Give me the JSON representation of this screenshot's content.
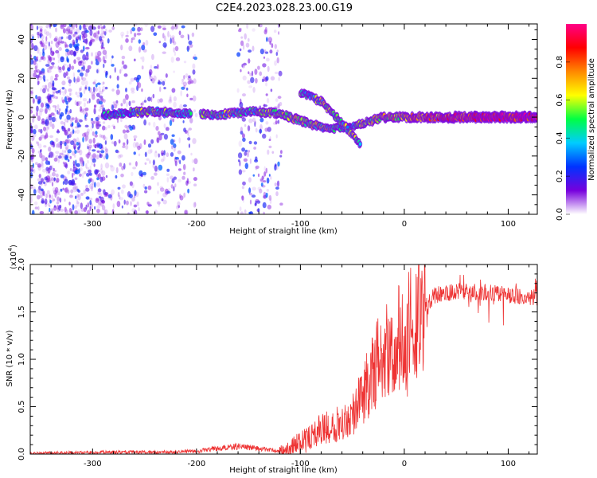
{
  "figure": {
    "title": "C2E4.2023.028.23.00.G19"
  },
  "chart_data": [
    {
      "type": "heatmap",
      "xlabel": "Height of straight line (km)",
      "ylabel": "Frequency (Hz)",
      "xlim": [
        -360,
        128
      ],
      "ylim": [
        -50,
        48
      ],
      "x_ticks": [
        -300,
        -200,
        -100,
        0,
        100
      ],
      "y_ticks": [
        -40,
        -20,
        0,
        20,
        40
      ],
      "noise_regions": [
        {
          "x": [
            -360,
            -286
          ],
          "density": "high"
        },
        {
          "x": [
            -285,
            -200
          ],
          "density": "medium"
        },
        {
          "x": [
            -160,
            -118
          ],
          "density": "medium"
        }
      ],
      "ridge": [
        {
          "x": -290,
          "y": 1,
          "amp": 0.35
        },
        {
          "x": -250,
          "y": 3,
          "amp": 0.45
        },
        {
          "x": -215,
          "y": 2,
          "amp": 0.4
        },
        {
          "x": -180,
          "y": 1,
          "amp": 0.5
        },
        {
          "x": -150,
          "y": 3,
          "amp": 0.45
        },
        {
          "x": -120,
          "y": 2,
          "amp": 0.55
        },
        {
          "x": -100,
          "y": -2,
          "amp": 0.55
        },
        {
          "x": -75,
          "y": -6,
          "amp": 0.5
        },
        {
          "x": -50,
          "y": -5,
          "amp": 0.45
        },
        {
          "x": -20,
          "y": 0,
          "amp": 0.6
        },
        {
          "x": 20,
          "y": 0,
          "amp": 0.75
        },
        {
          "x": 60,
          "y": 0,
          "amp": 0.85
        },
        {
          "x": 100,
          "y": 0,
          "amp": 0.9
        },
        {
          "x": 128,
          "y": 0,
          "amp": 0.9
        }
      ],
      "branch": [
        {
          "x": -100,
          "y": 13,
          "amp": 0.4
        },
        {
          "x": -80,
          "y": 8,
          "amp": 0.5
        },
        {
          "x": -60,
          "y": -3,
          "amp": 0.5
        },
        {
          "x": -42,
          "y": -14,
          "amp": 0.45
        }
      ],
      "colorbar": {
        "label": "Normalized spectral amplitude",
        "range": [
          0,
          1
        ],
        "ticks": [
          "0.0",
          "0.2",
          "0.4",
          "0.6",
          "0.8"
        ],
        "colors": [
          "#ffffff",
          "#7700dd",
          "#0033ff",
          "#00ccff",
          "#00ff44",
          "#ffff00",
          "#ff8800",
          "#ff0000",
          "#ff0088"
        ]
      }
    },
    {
      "type": "line",
      "xlabel": "Height of straight line (km)",
      "ylabel": "SNR (10 * v/v)",
      "y_multiplier_label": "(x10",
      "y_multiplier_exp": "4",
      "xlim": [
        -360,
        128
      ],
      "ylim": [
        0,
        2.0
      ],
      "x_ticks": [
        -300,
        -200,
        -100,
        0,
        100
      ],
      "y_ticks": [
        "0.0",
        "0.5",
        "1.0",
        "1.5",
        "2.0"
      ],
      "series": [
        {
          "color": "#ee3333",
          "x": [
            -360,
            -320,
            -280,
            -240,
            -200,
            -180,
            -160,
            -140,
            -120,
            -110,
            -100,
            -90,
            -80,
            -70,
            -60,
            -50,
            -40,
            -30,
            -20,
            -10,
            0,
            10,
            20,
            30,
            40,
            60,
            80,
            100,
            128
          ],
          "y": [
            0.01,
            0.015,
            0.02,
            0.02,
            0.03,
            0.06,
            0.08,
            0.06,
            0.03,
            0.06,
            0.15,
            0.18,
            0.25,
            0.3,
            0.35,
            0.42,
            0.6,
            0.9,
            1.05,
            1.15,
            1.25,
            1.4,
            1.55,
            1.68,
            1.7,
            1.72,
            1.7,
            1.68,
            1.65
          ]
        }
      ]
    }
  ]
}
